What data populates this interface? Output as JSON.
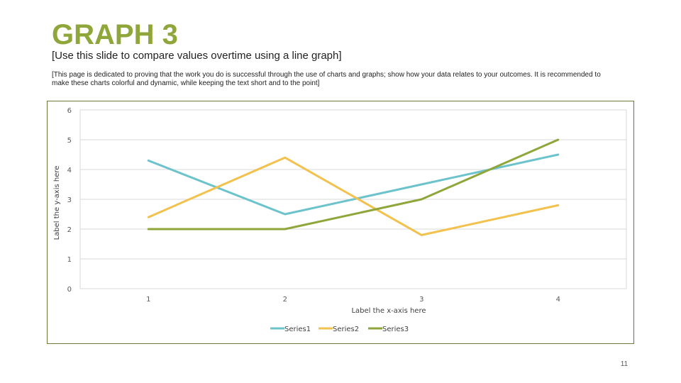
{
  "slide": {
    "title": "GRAPH 3",
    "subtitle": "[Use this slide to compare values overtime using a line graph]",
    "description": "[This page is dedicated to proving that the work you do is successful through the use of charts and graphs; show how your data relates to your outcomes. It is recommended to make these charts colorful and dynamic, while keeping the text short and to the point]",
    "page_number": "11"
  },
  "chart_data": {
    "type": "line",
    "title": "",
    "categories": [
      "1",
      "2",
      "3",
      "4"
    ],
    "series": [
      {
        "name": "Series1",
        "color": "#6cc3cc",
        "values": [
          4.3,
          2.5,
          3.5,
          4.5
        ]
      },
      {
        "name": "Series2",
        "color": "#f2c14e",
        "values": [
          2.4,
          4.4,
          1.8,
          2.8
        ]
      },
      {
        "name": "Series3",
        "color": "#8fa63a",
        "values": [
          2.0,
          2.0,
          3.0,
          5.0
        ]
      }
    ],
    "xlabel": "Label the x-axis here",
    "ylabel": "Label the y-axis here",
    "ylim": [
      0,
      6
    ],
    "yticks": [
      "0",
      "1",
      "2",
      "3",
      "4",
      "5",
      "6"
    ],
    "grid": true,
    "legend": "bottom"
  }
}
